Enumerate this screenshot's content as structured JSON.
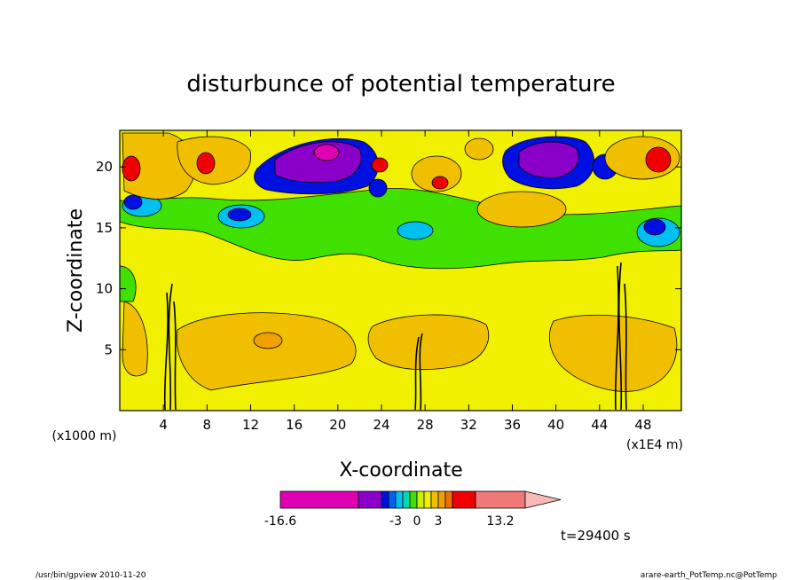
{
  "chart_data": {
    "type": "heatmap",
    "title": "disturbunce of potential temperature",
    "xlabel": "X-coordinate",
    "ylabel": "Z-coordinate",
    "x_unit_left": "(x1000 m)",
    "x_unit_right": "(x1E4 m)",
    "x_ticks": [
      "4",
      "8",
      "12",
      "16",
      "20",
      "24",
      "28",
      "32",
      "36",
      "40",
      "44",
      "48"
    ],
    "y_ticks": [
      "5",
      "10",
      "15",
      "20"
    ],
    "xlim": [
      0,
      51.5
    ],
    "ylim": [
      0,
      23
    ],
    "colorbar": {
      "labels": [
        "-16.6",
        "-3",
        "0",
        "3",
        "13.2"
      ],
      "colors": [
        "#e000b4",
        "#8a00c8",
        "#0010e0",
        "#0060f0",
        "#00c0f0",
        "#00d8b0",
        "#40e000",
        "#c8f000",
        "#f0f000",
        "#f0c000",
        "#f0a000",
        "#f07000",
        "#f00000",
        "#f07878",
        "#f8b8b8"
      ]
    },
    "bands": [
      {
        "z": [
          0,
          1.5
        ],
        "value": 0
      },
      {
        "z": [
          1.5,
          8
        ],
        "value": 1
      },
      {
        "z": [
          8,
          12
        ],
        "value": 0
      },
      {
        "z": [
          12,
          16
        ],
        "value": -1
      },
      {
        "z": [
          16,
          23
        ],
        "value": 2
      }
    ],
    "time_label": "t=29400 s",
    "footer_left": "/usr/bin/gpview   2010-11-20",
    "footer_right": "arare-earth_PotTemp.nc@PotTemp"
  }
}
